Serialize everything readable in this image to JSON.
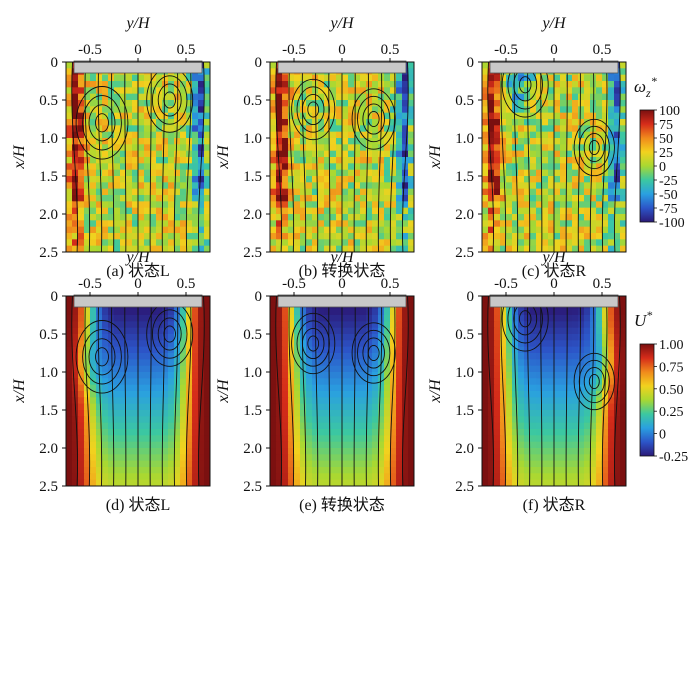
{
  "figure": {
    "rows": [
      {
        "field": "vorticity",
        "colorbar": {
          "title": "ω",
          "title_sub": "z",
          "title_sup": "*",
          "range": [
            -100,
            100
          ],
          "ticks": [
            "100",
            "75",
            "50",
            "25",
            "0",
            "-25",
            "-50",
            "-75",
            "-100"
          ]
        },
        "panels": [
          {
            "caption": "(a) 状态L",
            "pattern": "L"
          },
          {
            "caption": "(b) 转换状态",
            "pattern": "T"
          },
          {
            "caption": "(c) 状态R",
            "pattern": "R"
          }
        ]
      },
      {
        "field": "velocity",
        "colorbar": {
          "title": "U",
          "title_sup": "*",
          "range": [
            -0.25,
            1.0
          ],
          "ticks": [
            "1.00",
            "0.75",
            "0.50",
            "0.25",
            "0",
            "-0.25"
          ]
        },
        "panels": [
          {
            "caption": "(d) 状态L",
            "pattern": "L"
          },
          {
            "caption": "(e) 转换状态",
            "pattern": "T"
          },
          {
            "caption": "(f) 状态R",
            "pattern": "R"
          }
        ]
      }
    ]
  },
  "chart_data": {
    "type": "heatmap",
    "xlabel": "y/H",
    "ylabel": "x/H",
    "x_ticks": [
      "-0.5",
      "0",
      "0.5"
    ],
    "y_ticks": [
      "0",
      "0.5",
      "1.0",
      "1.5",
      "2.0",
      "2.5"
    ],
    "xlim": [
      -0.75,
      0.75
    ],
    "ylim": [
      2.5,
      0
    ],
    "colormap": [
      "#2b1a78",
      "#2c55c8",
      "#2aa0e0",
      "#3cc8a0",
      "#a8d832",
      "#f2d21e",
      "#f08a1c",
      "#d62c1a",
      "#7a1010"
    ]
  }
}
